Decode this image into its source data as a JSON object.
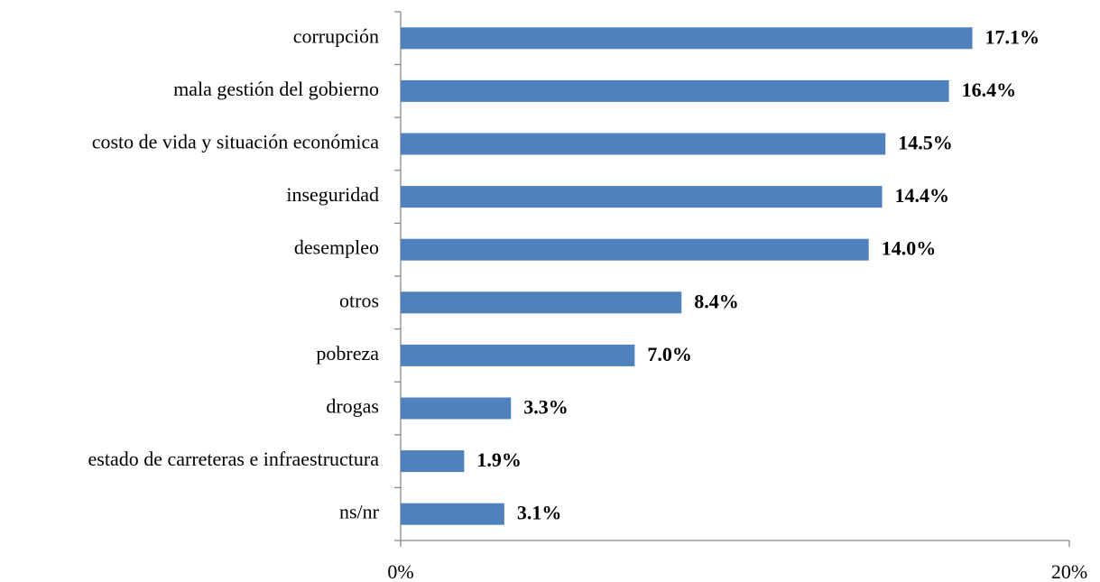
{
  "chart_data": {
    "type": "bar",
    "orientation": "horizontal",
    "categories": [
      "corrupción",
      "mala gestión del gobierno",
      "costo de vida y situación económica",
      "inseguridad",
      "desempleo",
      "otros",
      "pobreza",
      "drogas",
      "estado de carreteras e infraestructura",
      "ns/nr"
    ],
    "values": [
      17.1,
      16.4,
      14.5,
      14.4,
      14.0,
      8.4,
      7.0,
      3.3,
      1.9,
      3.1
    ],
    "value_labels": [
      "17.1%",
      "16.4%",
      "14.5%",
      "14.4%",
      "14.0%",
      "8.4%",
      "7.0%",
      "3.3%",
      "1.9%",
      "3.1%"
    ],
    "color": "#4f81bd",
    "xlim": [
      0,
      20
    ],
    "xticks": [
      {
        "value": 0,
        "label": "0%"
      },
      {
        "value": 20,
        "label": "20%"
      }
    ]
  }
}
